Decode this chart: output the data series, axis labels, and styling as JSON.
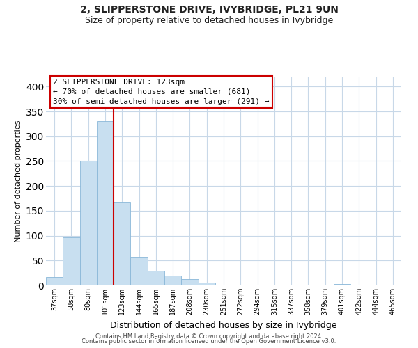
{
  "title": "2, SLIPPERSTONE DRIVE, IVYBRIDGE, PL21 9UN",
  "subtitle": "Size of property relative to detached houses in Ivybridge",
  "xlabel": "Distribution of detached houses by size in Ivybridge",
  "ylabel": "Number of detached properties",
  "bar_labels": [
    "37sqm",
    "58sqm",
    "80sqm",
    "101sqm",
    "123sqm",
    "144sqm",
    "165sqm",
    "187sqm",
    "208sqm",
    "230sqm",
    "251sqm",
    "272sqm",
    "294sqm",
    "315sqm",
    "337sqm",
    "358sqm",
    "379sqm",
    "401sqm",
    "422sqm",
    "444sqm",
    "465sqm"
  ],
  "bar_heights": [
    17,
    97,
    250,
    330,
    168,
    58,
    30,
    19,
    12,
    5,
    1,
    0,
    1,
    0,
    0,
    0,
    0,
    3,
    0,
    0,
    2
  ],
  "bar_color": "#c8dff0",
  "bar_edge_color": "#8ab8d8",
  "property_line_x": 4,
  "property_line_color": "#cc0000",
  "ylim": [
    0,
    420
  ],
  "yticks": [
    0,
    50,
    100,
    150,
    200,
    250,
    300,
    350,
    400
  ],
  "annotation_line1": "2 SLIPPERSTONE DRIVE: 123sqm",
  "annotation_line2": "← 70% of detached houses are smaller (681)",
  "annotation_line3": "30% of semi-detached houses are larger (291) →",
  "footer_line1": "Contains HM Land Registry data © Crown copyright and database right 2024.",
  "footer_line2": "Contains public sector information licensed under the Open Government Licence v3.0.",
  "background_color": "#ffffff",
  "grid_color": "#c8d8e8",
  "title_fontsize": 10,
  "subtitle_fontsize": 9,
  "ylabel_fontsize": 8,
  "xlabel_fontsize": 9,
  "tick_fontsize": 7,
  "ann_fontsize": 8,
  "footer_fontsize": 6
}
